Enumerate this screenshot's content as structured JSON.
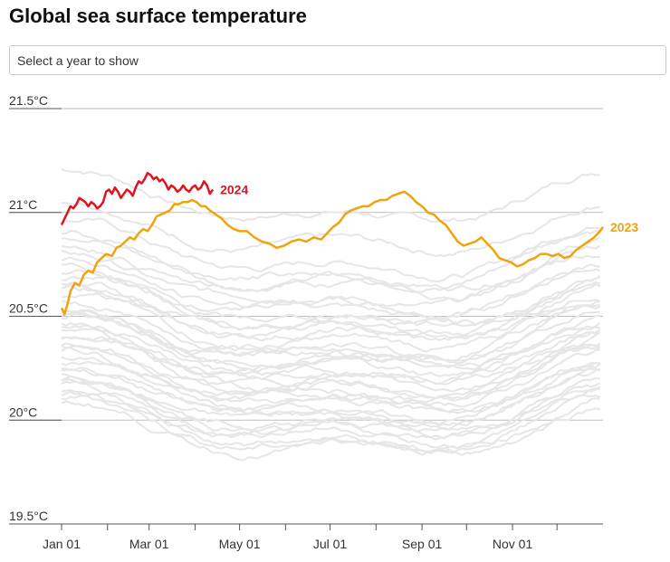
{
  "page": {
    "title": "Global sea surface temperature",
    "select": {
      "placeholder": "Select a year to show"
    }
  },
  "chart_data": {
    "type": "line",
    "title": "Global sea surface temperature",
    "xlabel": "",
    "ylabel": "",
    "xlim": [
      0,
      365
    ],
    "ylim": [
      19.5,
      21.5
    ],
    "y_ticks": [
      {
        "value": 21.5,
        "label": "21.5°C"
      },
      {
        "value": 21.0,
        "label": "21°C"
      },
      {
        "value": 20.5,
        "label": "20.5°C"
      },
      {
        "value": 20.0,
        "label": "20°C"
      },
      {
        "value": 19.5,
        "label": "19.5°C"
      }
    ],
    "x_ticks": [
      {
        "day": 0,
        "label": "Jan 01"
      },
      {
        "day": 31,
        "label": ""
      },
      {
        "day": 59,
        "label": "Mar 01"
      },
      {
        "day": 90,
        "label": ""
      },
      {
        "day": 120,
        "label": "May 01"
      },
      {
        "day": 151,
        "label": ""
      },
      {
        "day": 181,
        "label": "Jul 01"
      },
      {
        "day": 212,
        "label": ""
      },
      {
        "day": 243,
        "label": "Sep 01"
      },
      {
        "day": 273,
        "label": ""
      },
      {
        "day": 304,
        "label": "Nov 01"
      },
      {
        "day": 334,
        "label": ""
      }
    ],
    "colors": {
      "highlight_2024": "#e0141e",
      "highlight_2023": "#f0a30a",
      "background_years": "#e6e6e6",
      "grid": "#bdbdbd"
    },
    "background_series": {
      "description_count": 40,
      "offsets": [
        0.1,
        -0.05,
        -0.15,
        -0.22,
        -0.3,
        -0.36,
        -0.42,
        -0.48,
        -0.52,
        -0.56,
        -0.6,
        -0.64,
        -0.68,
        -0.72,
        -0.75,
        -0.78,
        -0.82,
        -0.85,
        -0.88,
        -0.91,
        -0.94,
        -0.97,
        -1.0,
        -1.03,
        -0.4,
        -0.58,
        -0.7,
        -0.26,
        -0.62,
        -0.8,
        -0.46,
        -0.92,
        -0.34,
        -0.99,
        -0.2,
        -0.54,
        -0.74,
        -0.86,
        -0.66,
        -0.44
      ]
    },
    "series": [
      {
        "name": "2023",
        "color": "#f0a30a",
        "points": [
          [
            0,
            20.54
          ],
          [
            2,
            20.51
          ],
          [
            4,
            20.56
          ],
          [
            6,
            20.62
          ],
          [
            9,
            20.66
          ],
          [
            12,
            20.65
          ],
          [
            15,
            20.7
          ],
          [
            18,
            20.72
          ],
          [
            21,
            20.71
          ],
          [
            24,
            20.76
          ],
          [
            27,
            20.78
          ],
          [
            30,
            20.8
          ],
          [
            34,
            20.79
          ],
          [
            37,
            20.83
          ],
          [
            40,
            20.84
          ],
          [
            43,
            20.86
          ],
          [
            46,
            20.88
          ],
          [
            49,
            20.87
          ],
          [
            52,
            20.9
          ],
          [
            55,
            20.92
          ],
          [
            58,
            20.91
          ],
          [
            61,
            20.94
          ],
          [
            64,
            20.98
          ],
          [
            67,
            20.99
          ],
          [
            70,
            21.0
          ],
          [
            73,
            21.01
          ],
          [
            76,
            21.04
          ],
          [
            79,
            21.04
          ],
          [
            82,
            21.05
          ],
          [
            85,
            21.05
          ],
          [
            88,
            21.06
          ],
          [
            91,
            21.05
          ],
          [
            94,
            21.03
          ],
          [
            97,
            21.03
          ],
          [
            100,
            21.01
          ],
          [
            104,
            20.99
          ],
          [
            108,
            20.97
          ],
          [
            112,
            20.94
          ],
          [
            116,
            20.92
          ],
          [
            120,
            20.91
          ],
          [
            125,
            20.91
          ],
          [
            130,
            20.88
          ],
          [
            135,
            20.86
          ],
          [
            140,
            20.85
          ],
          [
            145,
            20.83
          ],
          [
            150,
            20.84
          ],
          [
            155,
            20.86
          ],
          [
            160,
            20.87
          ],
          [
            165,
            20.86
          ],
          [
            170,
            20.88
          ],
          [
            175,
            20.87
          ],
          [
            179,
            20.9
          ],
          [
            183,
            20.93
          ],
          [
            187,
            20.95
          ],
          [
            191,
            20.99
          ],
          [
            195,
            21.01
          ],
          [
            199,
            21.02
          ],
          [
            203,
            21.03
          ],
          [
            207,
            21.03
          ],
          [
            211,
            21.05
          ],
          [
            215,
            21.06
          ],
          [
            219,
            21.06
          ],
          [
            223,
            21.08
          ],
          [
            227,
            21.09
          ],
          [
            231,
            21.1
          ],
          [
            235,
            21.08
          ],
          [
            239,
            21.05
          ],
          [
            243,
            21.03
          ],
          [
            247,
            21.0
          ],
          [
            251,
            20.99
          ],
          [
            255,
            20.96
          ],
          [
            259,
            20.94
          ],
          [
            263,
            20.9
          ],
          [
            267,
            20.86
          ],
          [
            271,
            20.84
          ],
          [
            275,
            20.85
          ],
          [
            279,
            20.86
          ],
          [
            283,
            20.88
          ],
          [
            287,
            20.85
          ],
          [
            291,
            20.82
          ],
          [
            295,
            20.78
          ],
          [
            299,
            20.77
          ],
          [
            303,
            20.76
          ],
          [
            307,
            20.74
          ],
          [
            311,
            20.75
          ],
          [
            315,
            20.77
          ],
          [
            319,
            20.78
          ],
          [
            323,
            20.8
          ],
          [
            327,
            20.8
          ],
          [
            331,
            20.79
          ],
          [
            335,
            20.8
          ],
          [
            339,
            20.78
          ],
          [
            343,
            20.79
          ],
          [
            347,
            20.82
          ],
          [
            351,
            20.84
          ],
          [
            355,
            20.86
          ],
          [
            359,
            20.88
          ],
          [
            363,
            20.91
          ],
          [
            365,
            20.93
          ]
        ],
        "end_label": "2023"
      },
      {
        "name": "2024",
        "color": "#e0141e",
        "points": [
          [
            0,
            20.94
          ],
          [
            2,
            20.97
          ],
          [
            4,
            21.0
          ],
          [
            6,
            21.03
          ],
          [
            8,
            21.02
          ],
          [
            10,
            21.04
          ],
          [
            12,
            21.07
          ],
          [
            14,
            21.06
          ],
          [
            16,
            21.05
          ],
          [
            18,
            21.03
          ],
          [
            20,
            21.05
          ],
          [
            22,
            21.04
          ],
          [
            24,
            21.02
          ],
          [
            26,
            21.03
          ],
          [
            28,
            21.05
          ],
          [
            30,
            21.1
          ],
          [
            32,
            21.11
          ],
          [
            34,
            21.09
          ],
          [
            36,
            21.12
          ],
          [
            38,
            21.1
          ],
          [
            40,
            21.07
          ],
          [
            42,
            21.09
          ],
          [
            44,
            21.11
          ],
          [
            46,
            21.1
          ],
          [
            48,
            21.08
          ],
          [
            50,
            21.12
          ],
          [
            52,
            21.15
          ],
          [
            54,
            21.14
          ],
          [
            56,
            21.16
          ],
          [
            58,
            21.19
          ],
          [
            60,
            21.18
          ],
          [
            62,
            21.16
          ],
          [
            64,
            21.17
          ],
          [
            66,
            21.15
          ],
          [
            68,
            21.16
          ],
          [
            70,
            21.14
          ],
          [
            72,
            21.11
          ],
          [
            74,
            21.13
          ],
          [
            76,
            21.12
          ],
          [
            78,
            21.1
          ],
          [
            80,
            21.11
          ],
          [
            82,
            21.13
          ],
          [
            84,
            21.11
          ],
          [
            86,
            21.1
          ],
          [
            88,
            21.12
          ],
          [
            90,
            21.13
          ],
          [
            92,
            21.11
          ],
          [
            94,
            21.12
          ],
          [
            96,
            21.15
          ],
          [
            98,
            21.13
          ],
          [
            100,
            21.09
          ],
          [
            102,
            21.11
          ]
        ],
        "end_label": "2024"
      }
    ]
  }
}
